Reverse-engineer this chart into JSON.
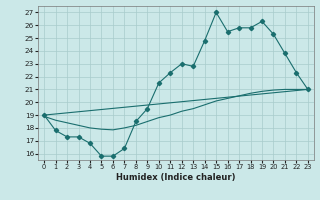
{
  "title": "",
  "xlabel": "Humidex (Indice chaleur)",
  "bg_color": "#cbe8e8",
  "line_color": "#1a6e6e",
  "grid_color": "#a8cccc",
  "xlim": [
    -0.5,
    23.5
  ],
  "ylim": [
    15.5,
    27.5
  ],
  "xticks": [
    0,
    1,
    2,
    3,
    4,
    5,
    6,
    7,
    8,
    9,
    10,
    11,
    12,
    13,
    14,
    15,
    16,
    17,
    18,
    19,
    20,
    21,
    22,
    23
  ],
  "yticks": [
    16,
    17,
    18,
    19,
    20,
    21,
    22,
    23,
    24,
    25,
    26,
    27
  ],
  "line1_x": [
    0,
    1,
    2,
    3,
    4,
    5,
    6,
    7,
    8,
    9,
    10,
    11,
    12,
    13,
    14,
    15,
    16,
    17,
    18,
    19,
    20,
    21,
    22,
    23
  ],
  "line1_y": [
    19.0,
    17.8,
    17.3,
    17.3,
    16.8,
    15.8,
    15.8,
    16.4,
    18.5,
    19.5,
    21.5,
    22.3,
    23.0,
    22.8,
    24.8,
    27.0,
    25.5,
    25.8,
    25.8,
    26.3,
    25.3,
    23.8,
    22.3,
    21.0
  ],
  "line2_x": [
    0,
    23
  ],
  "line2_y": [
    19.0,
    21.0
  ],
  "line3_x": [
    0,
    1,
    2,
    3,
    4,
    5,
    6,
    7,
    8,
    9,
    10,
    11,
    12,
    13,
    14,
    15,
    16,
    17,
    18,
    19,
    20,
    21,
    22,
    23
  ],
  "line3_y": [
    18.9,
    18.6,
    18.4,
    18.2,
    18.0,
    17.9,
    17.85,
    18.0,
    18.2,
    18.5,
    18.8,
    19.0,
    19.3,
    19.5,
    19.8,
    20.1,
    20.3,
    20.5,
    20.7,
    20.85,
    20.95,
    21.0,
    21.0,
    21.0
  ]
}
